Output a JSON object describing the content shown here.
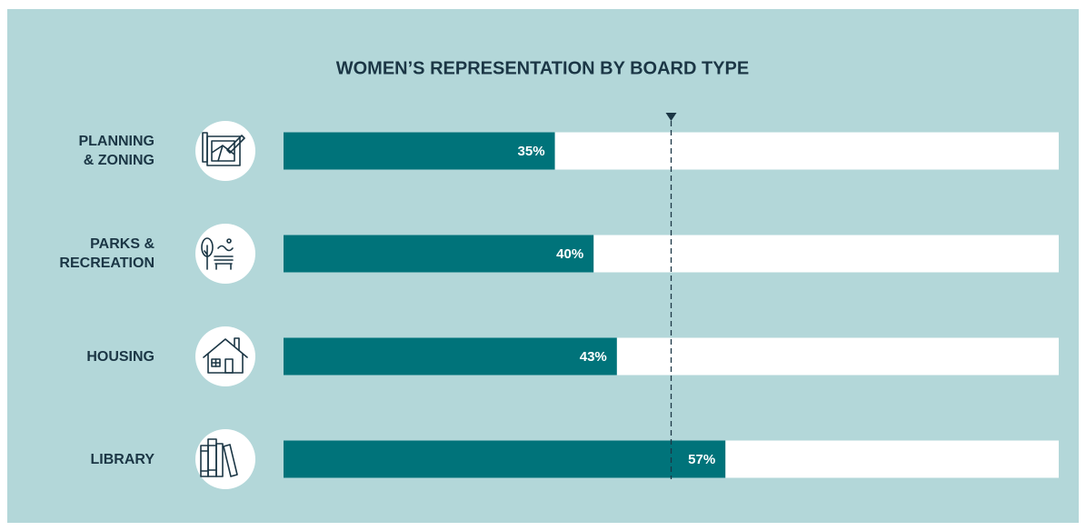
{
  "chart_data": {
    "type": "bar",
    "orientation": "horizontal",
    "title": "WOMEN’S REPRESENTATION BY BOARD TYPE",
    "categories": [
      "PLANNING\n& ZONING",
      "PARKS &\nRECREATION",
      "HOUSING",
      "LIBRARY"
    ],
    "values": [
      35,
      40,
      43,
      57
    ],
    "value_labels": [
      "35%",
      "40%",
      "43%",
      "57%"
    ],
    "color": "#00737a",
    "xlim": [
      0,
      100
    ],
    "reference_line": 50
  }
}
